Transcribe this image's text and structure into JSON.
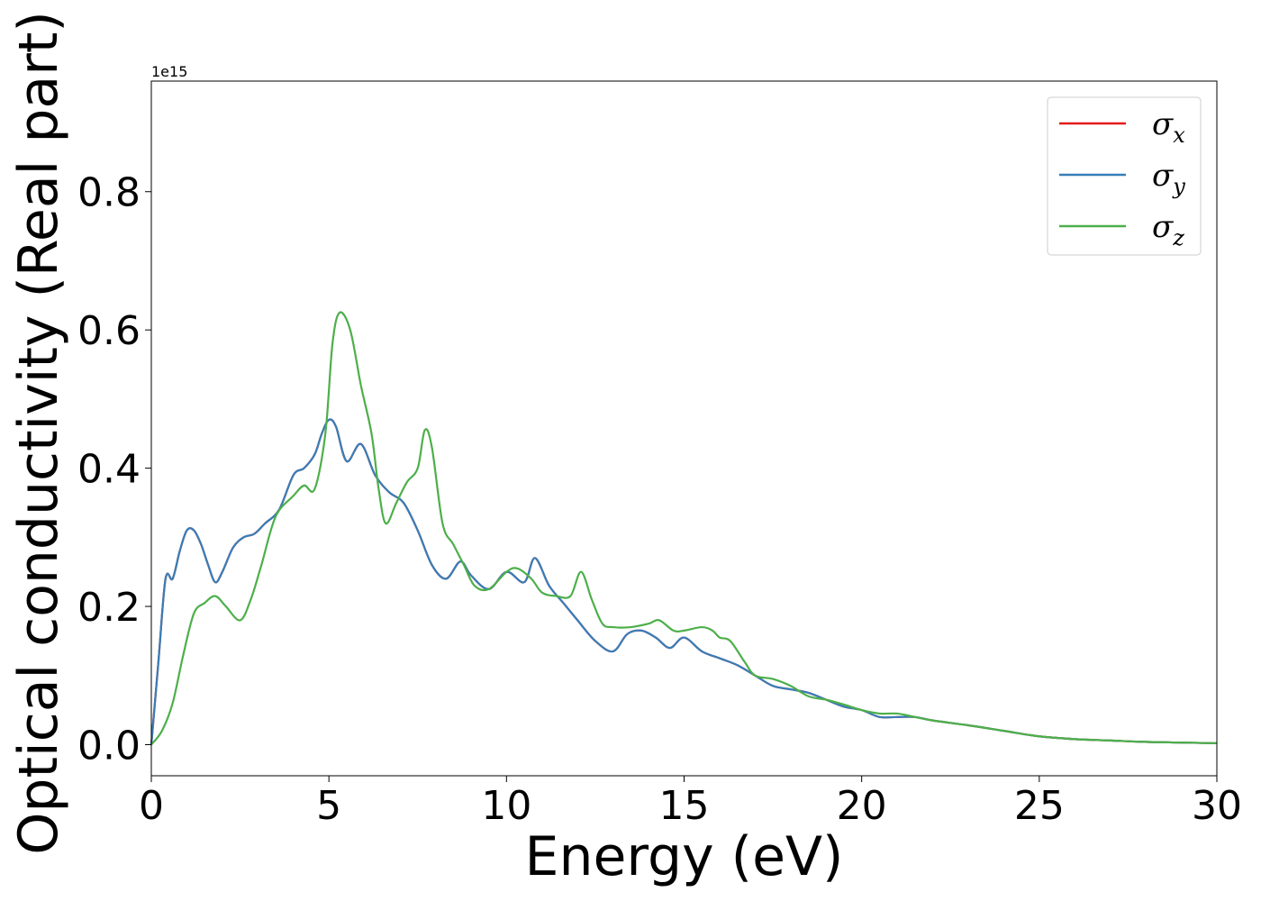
{
  "chart_data": {
    "type": "line",
    "xlabel": "Energy (eV)",
    "ylabel": "Optical conductivity (Real part)",
    "y_offset_text": "1e15",
    "xlim": [
      0,
      30
    ],
    "ylim": [
      -0.045,
      0.96
    ],
    "y_scale_factor": 1000000000000000.0,
    "x_ticks": [
      0,
      5,
      10,
      15,
      20,
      25,
      30
    ],
    "x_tick_labels": [
      "0",
      "5",
      "10",
      "15",
      "20",
      "25",
      "30"
    ],
    "y_ticks": [
      0.0,
      0.2,
      0.4,
      0.6,
      0.8
    ],
    "y_tick_labels": [
      "0.0",
      "0.2",
      "0.4",
      "0.6",
      "0.8"
    ],
    "grid": false,
    "legend": {
      "position": "top-right",
      "entries": [
        {
          "symbol": "σ",
          "subscript": "x",
          "color": "#e41a1c"
        },
        {
          "symbol": "σ",
          "subscript": "y",
          "color": "#377eb8"
        },
        {
          "symbol": "σ",
          "subscript": "z",
          "color": "#4daf4a"
        }
      ]
    },
    "series": [
      {
        "key": "sigma_x",
        "color": "#e41a1c",
        "x": [
          0,
          0.2,
          0.4,
          0.6,
          0.8,
          1.0,
          1.2,
          1.4,
          1.6,
          1.8,
          2.0,
          2.3,
          2.6,
          2.9,
          3.2,
          3.6,
          4.0,
          4.3,
          4.6,
          4.8,
          5.0,
          5.2,
          5.5,
          5.9,
          6.3,
          6.7,
          7.1,
          7.5,
          7.9,
          8.3,
          8.7,
          9.0,
          9.5,
          10.0,
          10.5,
          10.8,
          11.2,
          11.6,
          12.0,
          12.5,
          13.0,
          13.4,
          13.8,
          14.2,
          14.6,
          15.0,
          15.5,
          16.0,
          16.5,
          17.0,
          17.5,
          18.0,
          18.5,
          19.0,
          19.5,
          20.0,
          20.5,
          21.0,
          21.5,
          22.0,
          23.0,
          24.0,
          25.0,
          26.0,
          27.0,
          28.0,
          29.0,
          30.0
        ],
        "y": [
          0.0,
          0.12,
          0.24,
          0.24,
          0.28,
          0.31,
          0.31,
          0.29,
          0.26,
          0.235,
          0.25,
          0.285,
          0.3,
          0.305,
          0.32,
          0.34,
          0.39,
          0.4,
          0.42,
          0.45,
          0.47,
          0.46,
          0.41,
          0.435,
          0.39,
          0.365,
          0.35,
          0.31,
          0.26,
          0.24,
          0.265,
          0.245,
          0.225,
          0.25,
          0.235,
          0.27,
          0.23,
          0.205,
          0.18,
          0.15,
          0.135,
          0.16,
          0.165,
          0.155,
          0.14,
          0.155,
          0.135,
          0.125,
          0.115,
          0.1,
          0.085,
          0.08,
          0.075,
          0.065,
          0.055,
          0.05,
          0.04,
          0.04,
          0.04,
          0.035,
          0.028,
          0.02,
          0.012,
          0.008,
          0.006,
          0.004,
          0.003,
          0.002
        ]
      },
      {
        "key": "sigma_y",
        "color": "#377eb8",
        "x": [
          0,
          0.2,
          0.4,
          0.6,
          0.8,
          1.0,
          1.2,
          1.4,
          1.6,
          1.8,
          2.0,
          2.3,
          2.6,
          2.9,
          3.2,
          3.6,
          4.0,
          4.3,
          4.6,
          4.8,
          5.0,
          5.2,
          5.5,
          5.9,
          6.3,
          6.7,
          7.1,
          7.5,
          7.9,
          8.3,
          8.7,
          9.0,
          9.5,
          10.0,
          10.5,
          10.8,
          11.2,
          11.6,
          12.0,
          12.5,
          13.0,
          13.4,
          13.8,
          14.2,
          14.6,
          15.0,
          15.5,
          16.0,
          16.5,
          17.0,
          17.5,
          18.0,
          18.5,
          19.0,
          19.5,
          20.0,
          20.5,
          21.0,
          21.5,
          22.0,
          23.0,
          24.0,
          25.0,
          26.0,
          27.0,
          28.0,
          29.0,
          30.0
        ],
        "y": [
          0.0,
          0.12,
          0.24,
          0.24,
          0.28,
          0.31,
          0.31,
          0.29,
          0.26,
          0.235,
          0.25,
          0.285,
          0.3,
          0.305,
          0.32,
          0.34,
          0.39,
          0.4,
          0.42,
          0.45,
          0.47,
          0.46,
          0.41,
          0.435,
          0.39,
          0.365,
          0.35,
          0.31,
          0.26,
          0.24,
          0.265,
          0.245,
          0.225,
          0.25,
          0.235,
          0.27,
          0.23,
          0.205,
          0.18,
          0.15,
          0.135,
          0.16,
          0.165,
          0.155,
          0.14,
          0.155,
          0.135,
          0.125,
          0.115,
          0.1,
          0.085,
          0.08,
          0.075,
          0.065,
          0.055,
          0.05,
          0.04,
          0.04,
          0.04,
          0.035,
          0.028,
          0.02,
          0.012,
          0.008,
          0.006,
          0.004,
          0.003,
          0.002
        ]
      },
      {
        "key": "sigma_z",
        "color": "#4daf4a",
        "x": [
          0,
          0.3,
          0.6,
          0.9,
          1.2,
          1.5,
          1.8,
          2.1,
          2.5,
          2.8,
          3.1,
          3.5,
          4.0,
          4.3,
          4.6,
          4.9,
          5.1,
          5.3,
          5.6,
          5.9,
          6.2,
          6.4,
          6.6,
          6.9,
          7.2,
          7.5,
          7.7,
          7.9,
          8.2,
          8.5,
          8.8,
          9.1,
          9.5,
          10.0,
          10.3,
          10.7,
          11.0,
          11.4,
          11.8,
          12.1,
          12.4,
          12.7,
          13.0,
          13.5,
          14.0,
          14.3,
          14.7,
          15.0,
          15.5,
          15.8,
          16.0,
          16.3,
          16.7,
          17.0,
          17.5,
          18.0,
          18.5,
          19.0,
          19.5,
          20.0,
          20.5,
          21.0,
          21.5,
          22.0,
          23.0,
          24.0,
          25.0,
          26.0,
          27.0,
          28.0,
          29.0,
          30.0
        ],
        "y": [
          0.0,
          0.02,
          0.06,
          0.13,
          0.19,
          0.205,
          0.215,
          0.2,
          0.18,
          0.21,
          0.26,
          0.33,
          0.36,
          0.375,
          0.37,
          0.45,
          0.58,
          0.625,
          0.6,
          0.52,
          0.45,
          0.37,
          0.32,
          0.35,
          0.38,
          0.4,
          0.455,
          0.43,
          0.32,
          0.29,
          0.26,
          0.23,
          0.225,
          0.25,
          0.255,
          0.24,
          0.22,
          0.215,
          0.215,
          0.25,
          0.21,
          0.175,
          0.17,
          0.17,
          0.175,
          0.18,
          0.165,
          0.165,
          0.17,
          0.165,
          0.155,
          0.15,
          0.12,
          0.1,
          0.095,
          0.085,
          0.07,
          0.065,
          0.058,
          0.05,
          0.045,
          0.045,
          0.04,
          0.035,
          0.028,
          0.02,
          0.012,
          0.008,
          0.006,
          0.004,
          0.003,
          0.002
        ]
      }
    ]
  }
}
